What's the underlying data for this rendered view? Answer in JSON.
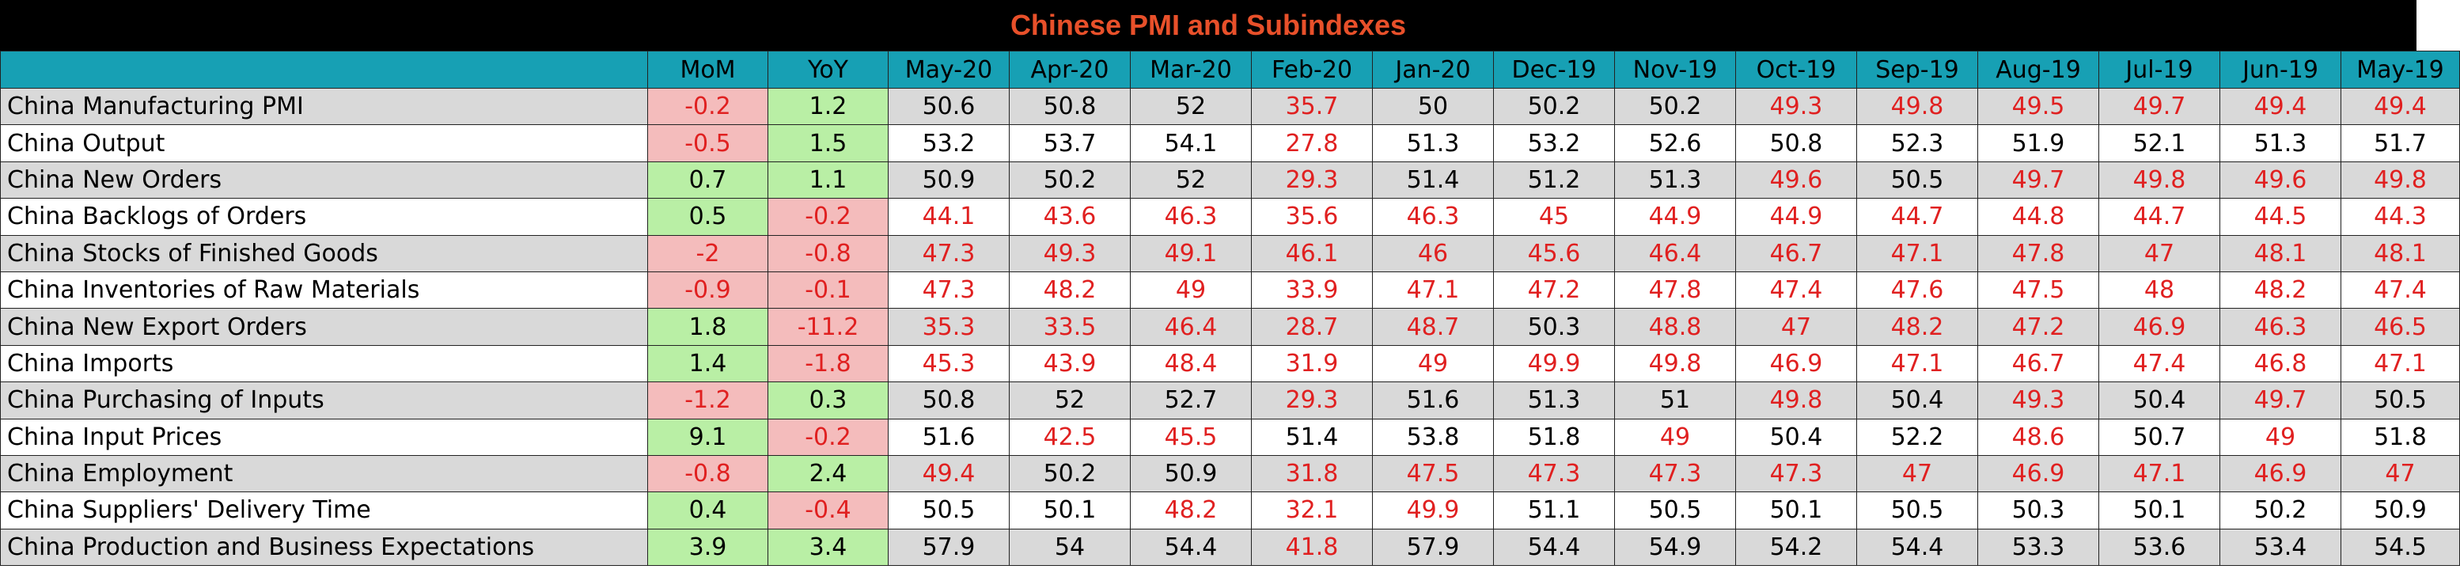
{
  "title": "Chinese PMI and Subindexes",
  "colors": {
    "title_bg": "#000000",
    "title_text": "#e8502a",
    "header_bg": "#17a0b4",
    "row_shade": "#d9d9d9",
    "below_50_text": "#e02020",
    "change_negative_bg": "#f4bcbc",
    "change_positive_bg": "#b9efa5"
  },
  "chart_data": {
    "type": "table",
    "title": "Chinese PMI and Subindexes",
    "columns": [
      "",
      "MoM",
      "YoY",
      "May-20",
      "Apr-20",
      "Mar-20",
      "Feb-20",
      "Jan-20",
      "Dec-19",
      "Nov-19",
      "Oct-19",
      "Sep-19",
      "Aug-19",
      "Jul-19",
      "Jun-19",
      "May-19"
    ],
    "rows": [
      {
        "label": "China Manufacturing PMI",
        "values": [
          "-0.2",
          "1.2",
          "50.6",
          "50.8",
          "52",
          "35.7",
          "50",
          "50.2",
          "50.2",
          "49.3",
          "49.8",
          "49.5",
          "49.7",
          "49.4",
          "49.4"
        ]
      },
      {
        "label": "China Output",
        "values": [
          "-0.5",
          "1.5",
          "53.2",
          "53.7",
          "54.1",
          "27.8",
          "51.3",
          "53.2",
          "52.6",
          "50.8",
          "52.3",
          "51.9",
          "52.1",
          "51.3",
          "51.7"
        ]
      },
      {
        "label": "China New Orders",
        "values": [
          "0.7",
          "1.1",
          "50.9",
          "50.2",
          "52",
          "29.3",
          "51.4",
          "51.2",
          "51.3",
          "49.6",
          "50.5",
          "49.7",
          "49.8",
          "49.6",
          "49.8"
        ]
      },
      {
        "label": "China Backlogs of Orders",
        "values": [
          "0.5",
          "-0.2",
          "44.1",
          "43.6",
          "46.3",
          "35.6",
          "46.3",
          "45",
          "44.9",
          "44.9",
          "44.7",
          "44.8",
          "44.7",
          "44.5",
          "44.3"
        ]
      },
      {
        "label": "China Stocks of Finished Goods",
        "values": [
          "-2",
          "-0.8",
          "47.3",
          "49.3",
          "49.1",
          "46.1",
          "46",
          "45.6",
          "46.4",
          "46.7",
          "47.1",
          "47.8",
          "47",
          "48.1",
          "48.1"
        ]
      },
      {
        "label": "China Inventories of Raw Materials",
        "values": [
          "-0.9",
          "-0.1",
          "47.3",
          "48.2",
          "49",
          "33.9",
          "47.1",
          "47.2",
          "47.8",
          "47.4",
          "47.6",
          "47.5",
          "48",
          "48.2",
          "47.4"
        ]
      },
      {
        "label": "China New Export Orders",
        "values": [
          "1.8",
          "-11.2",
          "35.3",
          "33.5",
          "46.4",
          "28.7",
          "48.7",
          "50.3",
          "48.8",
          "47",
          "48.2",
          "47.2",
          "46.9",
          "46.3",
          "46.5"
        ]
      },
      {
        "label": "China Imports",
        "values": [
          "1.4",
          "-1.8",
          "45.3",
          "43.9",
          "48.4",
          "31.9",
          "49",
          "49.9",
          "49.8",
          "46.9",
          "47.1",
          "46.7",
          "47.4",
          "46.8",
          "47.1"
        ]
      },
      {
        "label": "China Purchasing of Inputs",
        "values": [
          "-1.2",
          "0.3",
          "50.8",
          "52",
          "52.7",
          "29.3",
          "51.6",
          "51.3",
          "51",
          "49.8",
          "50.4",
          "49.3",
          "50.4",
          "49.7",
          "50.5"
        ]
      },
      {
        "label": "China Input Prices",
        "values": [
          "9.1",
          "-0.2",
          "51.6",
          "42.5",
          "45.5",
          "51.4",
          "53.8",
          "51.8",
          "49",
          "50.4",
          "52.2",
          "48.6",
          "50.7",
          "49",
          "51.8"
        ]
      },
      {
        "label": "China Employment",
        "values": [
          "-0.8",
          "2.4",
          "49.4",
          "50.2",
          "50.9",
          "31.8",
          "47.5",
          "47.3",
          "47.3",
          "47.3",
          "47",
          "46.9",
          "47.1",
          "46.9",
          "47"
        ]
      },
      {
        "label": "China Suppliers' Delivery Time",
        "values": [
          "0.4",
          "-0.4",
          "50.5",
          "50.1",
          "48.2",
          "32.1",
          "49.9",
          "51.1",
          "50.5",
          "50.1",
          "50.5",
          "50.3",
          "50.1",
          "50.2",
          "50.9"
        ]
      },
      {
        "label": "China Production and Business Expectations",
        "values": [
          "3.9",
          "3.4",
          "57.9",
          "54",
          "54.4",
          "41.8",
          "57.9",
          "54.4",
          "54.9",
          "54.2",
          "54.4",
          "53.3",
          "53.6",
          "53.4",
          "54.5"
        ]
      }
    ]
  }
}
